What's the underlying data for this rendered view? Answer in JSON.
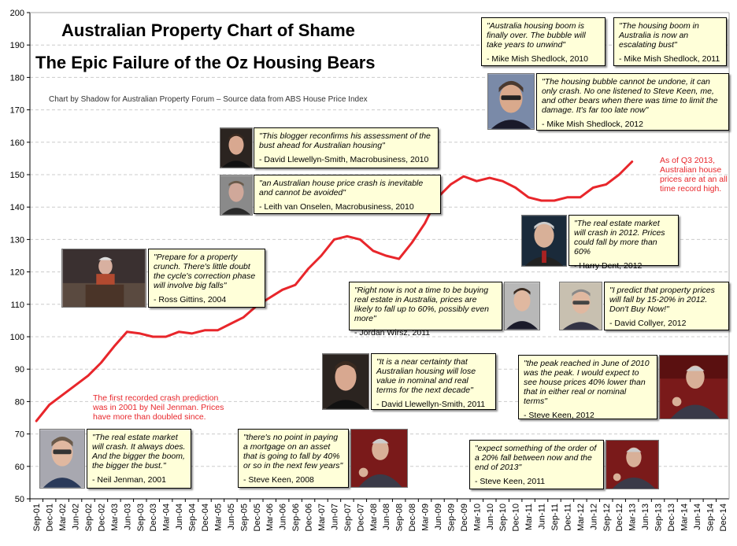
{
  "title": "Australian Property Chart of Shame",
  "subtitle": "The Epic Failure of the Oz Housing Bears",
  "credit": "Chart by Shadow for Australian Property Forum  –  Source data from ABS House Price Index",
  "colors": {
    "line": "#e8262b",
    "box": "#ffffd9",
    "note": "#e8262b",
    "grid": "#cccccc"
  },
  "chart_data": {
    "type": "line",
    "ylim": [
      50,
      200
    ],
    "yticks": [
      50,
      60,
      70,
      80,
      90,
      100,
      110,
      120,
      130,
      140,
      150,
      160,
      170,
      180,
      190,
      200
    ],
    "grid": true,
    "xlabels": [
      "Sep-01",
      "Dec-01",
      "Mar-02",
      "Jun-02",
      "Sep-02",
      "Dec-02",
      "Mar-03",
      "Jun-03",
      "Sep-03",
      "Dec-03",
      "Mar-04",
      "Jun-04",
      "Sep-04",
      "Dec-04",
      "Mar-05",
      "Jun-05",
      "Sep-05",
      "Dec-05",
      "Mar-06",
      "Jun-06",
      "Sep-06",
      "Dec-06",
      "Mar-07",
      "Jun-07",
      "Sep-07",
      "Dec-07",
      "Mar-08",
      "Jun-08",
      "Sep-08",
      "Dec-08",
      "Mar-09",
      "Jun-09",
      "Sep-09",
      "Dec-09",
      "Mar-10",
      "Jun-10",
      "Sep-10",
      "Dec-10",
      "Mar-11",
      "Jun-11",
      "Sep-11",
      "Dec-11",
      "Mar-12",
      "Jun-12",
      "Sep-12",
      "Dec-12",
      "Mar-13",
      "Jun-13",
      "Sep-13",
      "Dec-13",
      "Mar-14",
      "Jun-14",
      "Sep-14",
      "Dec-14"
    ],
    "series": [
      {
        "values": [
          74,
          79,
          82,
          85,
          88,
          92,
          97,
          101.5,
          101,
          100,
          100,
          101.5,
          101,
          102,
          102,
          104,
          106,
          109.5,
          112,
          114.5,
          116,
          121,
          125,
          130,
          131,
          130,
          126.5,
          125,
          124,
          129,
          135,
          143,
          147,
          149.5,
          148,
          149,
          148,
          146,
          143,
          142,
          142,
          143,
          143,
          146,
          147,
          150,
          154
        ]
      }
    ]
  },
  "notes": {
    "first_prediction": "The first recorded crash prediction was in 2001 by Neil Jenman. Prices have more than doubled since.",
    "record_high": "As of Q3 2013, Australian house prices are at an all time record high."
  },
  "quotes": [
    {
      "id": "shedlock-2010",
      "text": "\"Australia housing boom is finally over. The bubble will take years to unwind\"",
      "source": "- Mike Mish Shedlock, 2010",
      "photo": "none"
    },
    {
      "id": "shedlock-2011",
      "text": "\"The housing boom in Australia is now an escalating bust\"",
      "source": "- Mike Mish Shedlock, 2011",
      "photo": "none"
    },
    {
      "id": "shedlock-2012",
      "text": "\"The housing bubble cannot be undone, it can only crash. No one listened to Steve Keen, me, and other bears when there was time to limit the damage. It's far too late now\"",
      "source": "- Mike Mish Shedlock, 2012",
      "photo": "portrait-photo"
    },
    {
      "id": "llewellyn-2010",
      "text": "\"This blogger reconfirms his assessment of the bust ahead for Australian housing\"",
      "source": "- David Llewellyn-Smith, Macrobusiness, 2010",
      "photo": "portrait-photo"
    },
    {
      "id": "onselen-2010",
      "text": "\"an Australian house price crash is inevitable and cannot be avoided\"",
      "source": "- Leith van Onselen, Macrobusiness, 2010",
      "photo": "portrait-photo"
    },
    {
      "id": "gittins-2004",
      "text": "\"Prepare for a property crunch. There's little doubt the cycle's correction phase will involve big falls\"",
      "source": "- Ross Gittins, 2004",
      "photo": "speaker-photo"
    },
    {
      "id": "dent-2012",
      "text": "\"The real estate market will crash in 2012. Prices could fall by more than 60%",
      "source": "- Harry Dent, 2012",
      "photo": "portrait-photo"
    },
    {
      "id": "wirsz-2011",
      "text": "\"Right now is not a time to be buying real estate in Australia, prices are likely to fall up to 60%, possibly even more\"",
      "source": "- Jordan Wirsz, 2011",
      "photo": "portrait-photo"
    },
    {
      "id": "collyer-2012",
      "text": "\"I predict that property prices will fall by 15-20% in 2012. Don't Buy Now!\"",
      "source": "- David Collyer, 2012",
      "photo": "portrait-photo"
    },
    {
      "id": "llewellyn-2011",
      "text": "\"It is a near certainty that Australian housing will lose value in nominal and real terms for the next decade\"",
      "source": "- David Llewellyn-Smith, 2011",
      "photo": "portrait-photo"
    },
    {
      "id": "keen-2012",
      "text": "\"the peak reached in June of 2010 was the peak. I would expect to see house prices 40% lower than that in either real or nominal terms\"",
      "source": "- Steve Keen, 2012",
      "photo": "speaker-photo"
    },
    {
      "id": "jenman-2001",
      "text": "\"The real estate market will crash. It always does. And the bigger the boom, the bigger the bust.\"",
      "source": "- Neil Jenman, 2001",
      "photo": "portrait-photo"
    },
    {
      "id": "keen-2008",
      "text": "\"there's no point in paying a mortgage on an asset that is going to fall by 40% or so in the next few years\"",
      "source": "- Steve Keen, 2008",
      "photo": "speaker-photo"
    },
    {
      "id": "keen-2011",
      "text": "\"expect something of the order of a 20% fall between now and the end of 2013\"",
      "source": "- Steve Keen, 2011",
      "photo": "speaker-photo"
    }
  ]
}
